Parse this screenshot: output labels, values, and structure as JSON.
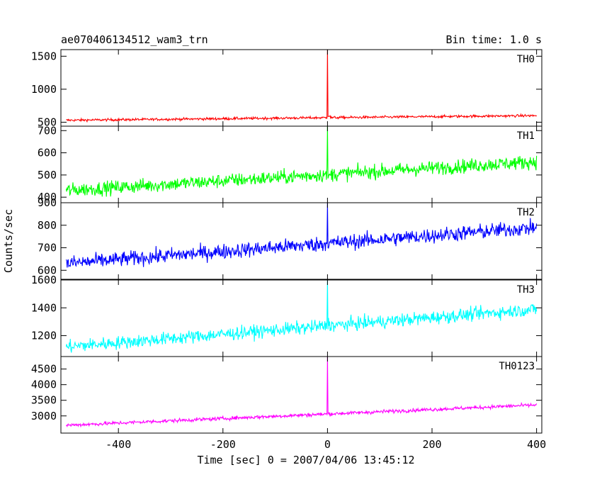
{
  "header": {
    "title": "ae070406134512_wam3_trn",
    "bin_time": "Bin time: 1.0 s"
  },
  "chart_data": {
    "type": "line",
    "title": "ae070406134512_wam3_trn",
    "subtitle": "Bin time: 1.0 s",
    "xlabel": "Time [sec] 0 = 2007/04/06 13:45:12",
    "ylabel": "Counts/sec",
    "xlim": [
      -510,
      410
    ],
    "x_ticks": [
      -400,
      -200,
      0,
      200,
      400
    ],
    "bin_time_s": 1.0,
    "panels": [
      {
        "name": "TH0",
        "color": "#ff0000",
        "ylim": [
          440,
          1600
        ],
        "y_ticks": [
          500,
          1000,
          1500
        ],
        "baseline_start": 530,
        "baseline_end": 600,
        "noise": 18,
        "spike_x": 0,
        "spike_peak": 1600,
        "after_spike_level": 590
      },
      {
        "name": "TH1",
        "color": "#00ff00",
        "ylim": [
          375,
          720
        ],
        "y_ticks": [
          400,
          500,
          600,
          700
        ],
        "baseline_start": 430,
        "baseline_end": 560,
        "noise": 30,
        "spike_x": 0,
        "spike_peak": 720,
        "after_spike_level": 480
      },
      {
        "name": "TH2",
        "color": "#0000ff",
        "ylim": [
          560,
          900
        ],
        "y_ticks": [
          600,
          700,
          800,
          900
        ],
        "baseline_start": 630,
        "baseline_end": 790,
        "noise": 32,
        "spike_x": 0,
        "spike_peak": 900,
        "after_spike_level": 700
      },
      {
        "name": "TH3",
        "color": "#00ffff",
        "ylim": [
          1050,
          1600
        ],
        "y_ticks": [
          1200,
          1400,
          1600
        ],
        "baseline_start": 1120,
        "baseline_end": 1390,
        "noise": 45,
        "spike_x": 0,
        "spike_peak": 1600,
        "after_spike_level": 1260
      },
      {
        "name": "TH0123",
        "color": "#ff00ff",
        "ylim": [
          2450,
          4900
        ],
        "y_ticks": [
          3000,
          3500,
          4000,
          4500
        ],
        "baseline_start": 2700,
        "baseline_end": 3350,
        "noise": 55,
        "spike_x": 0,
        "spike_peak": 4900,
        "after_spike_level": 3000
      }
    ]
  }
}
